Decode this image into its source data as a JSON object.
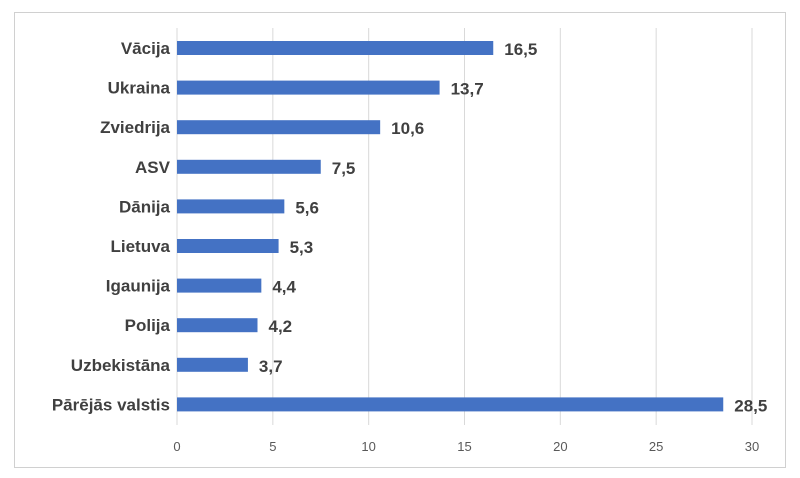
{
  "chart_data": {
    "type": "bar",
    "orientation": "horizontal",
    "title": "",
    "xlabel": "",
    "ylabel": "",
    "categories": [
      "Vācija",
      "Ukraina",
      "Zviedrija",
      "ASV",
      "Dānija",
      "Lietuva",
      "Igaunija",
      "Polija",
      "Uzbekistāna",
      "Pārējās valstis"
    ],
    "values": [
      16.5,
      13.7,
      10.6,
      7.5,
      5.6,
      5.3,
      4.4,
      4.2,
      3.7,
      28.5
    ],
    "value_labels": [
      "16,5",
      "13,7",
      "10,6",
      "7,5",
      "5,6",
      "5,3",
      "4,4",
      "4,2",
      "3,7",
      "28,5"
    ],
    "xlim": [
      0,
      30
    ],
    "ticks": [
      0,
      5,
      10,
      15,
      20,
      25,
      30
    ],
    "tick_labels": [
      "0",
      "5",
      "10",
      "15",
      "20",
      "25",
      "30"
    ],
    "grid": true,
    "legend": "none",
    "bar_color": "#4472c4"
  }
}
